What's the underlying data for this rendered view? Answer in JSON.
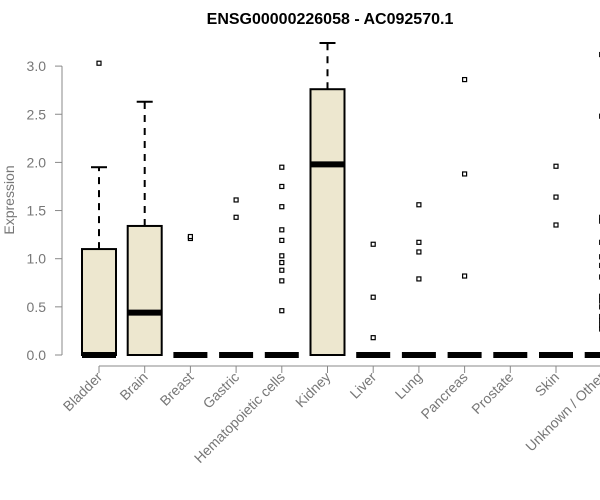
{
  "chart_data": {
    "type": "box",
    "title": "ENSG00000226058 - AC092570.1",
    "xlabel": "",
    "ylabel": "Expression",
    "ylim": [
      0,
      3.0
    ],
    "yticks": [
      "0.0",
      "0.5",
      "1.0",
      "1.5",
      "2.0",
      "2.5",
      "3.0"
    ],
    "grid": false,
    "colors": {
      "box_fill": "#ede7cf",
      "box_stroke": "#000000",
      "axis": "#888888",
      "label": "#777777"
    },
    "categories": [
      {
        "name": "Bladder",
        "q1": 0,
        "median": 0,
        "q3": 1.1,
        "whisker_low": 0,
        "whisker_high": 1.95,
        "outliers": [
          3.03
        ]
      },
      {
        "name": "Brain",
        "q1": 0,
        "median": 0.44,
        "q3": 1.34,
        "whisker_low": 0,
        "whisker_high": 2.63,
        "outliers": []
      },
      {
        "name": "Breast",
        "q1": 0,
        "median": 0,
        "q3": 0,
        "whisker_low": 0,
        "whisker_high": 0,
        "outliers": [
          1.21,
          1.23
        ]
      },
      {
        "name": "Gastric",
        "q1": 0,
        "median": 0,
        "q3": 0,
        "whisker_low": 0,
        "whisker_high": 0,
        "outliers": [
          1.43,
          1.61
        ]
      },
      {
        "name": "Hematopoietic cells",
        "q1": 0,
        "median": 0,
        "q3": 0,
        "whisker_low": 0,
        "whisker_high": 0,
        "outliers": [
          0.46,
          0.77,
          0.88,
          0.96,
          1.03,
          1.19,
          1.3,
          1.54,
          1.75,
          1.95
        ]
      },
      {
        "name": "Kidney",
        "q1": 0,
        "median": 1.98,
        "q3": 2.76,
        "whisker_low": 0,
        "whisker_high": 3.24,
        "outliers": []
      },
      {
        "name": "Liver",
        "q1": 0,
        "median": 0,
        "q3": 0,
        "whisker_low": 0,
        "whisker_high": 0,
        "outliers": [
          0.18,
          0.6,
          1.15
        ]
      },
      {
        "name": "Lung",
        "q1": 0,
        "median": 0,
        "q3": 0,
        "whisker_low": 0,
        "whisker_high": 0,
        "outliers": [
          0.79,
          1.07,
          1.17,
          1.56
        ]
      },
      {
        "name": "Pancreas",
        "q1": 0,
        "median": 0,
        "q3": 0,
        "whisker_low": 0,
        "whisker_high": 0,
        "outliers": [
          0.82,
          1.88,
          2.86
        ]
      },
      {
        "name": "Prostate",
        "q1": 0,
        "median": 0,
        "q3": 0,
        "whisker_low": 0,
        "whisker_high": 0,
        "outliers": []
      },
      {
        "name": "Skin",
        "q1": 0,
        "median": 0,
        "q3": 0,
        "whisker_low": 0,
        "whisker_high": 0,
        "outliers": [
          1.35,
          1.64,
          1.96
        ]
      },
      {
        "name": "Unknown / Other",
        "q1": 0,
        "median": 0,
        "q3": 0,
        "whisker_low": 0,
        "whisker_high": 0,
        "outliers": [
          0.27,
          0.31,
          0.36,
          0.4,
          0.5,
          0.56,
          0.61,
          0.81,
          0.93,
          1.02,
          1.17,
          1.39,
          1.43,
          2.48,
          3.12
        ]
      }
    ]
  }
}
